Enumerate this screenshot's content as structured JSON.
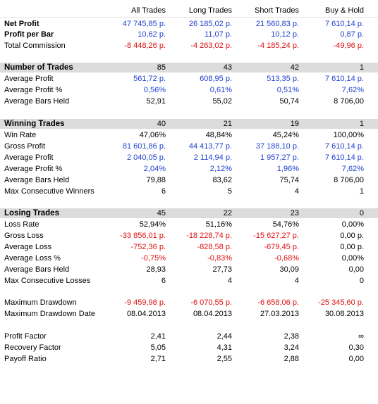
{
  "columns": [
    "All Trades",
    "Long Trades",
    "Short Trades",
    "Buy & Hold"
  ],
  "rows": [
    {
      "label": "Net Profit",
      "style": "bold",
      "values": [
        {
          "v": "47 745,85 p.",
          "c": "blue"
        },
        {
          "v": "26 185,02 p.",
          "c": "blue"
        },
        {
          "v": "21 560,83 p.",
          "c": "blue"
        },
        {
          "v": "7 610,14 p.",
          "c": "blue"
        }
      ]
    },
    {
      "label": "Profit per Bar",
      "style": "bold",
      "values": [
        {
          "v": "10,62 p.",
          "c": "blue"
        },
        {
          "v": "11,07 p.",
          "c": "blue"
        },
        {
          "v": "10,12 p.",
          "c": "blue"
        },
        {
          "v": "0,87 p.",
          "c": "blue"
        }
      ]
    },
    {
      "label": "Total Commission",
      "style": "normal",
      "values": [
        {
          "v": "-8 448,26 p.",
          "c": "red"
        },
        {
          "v": "-4 263,02 p.",
          "c": "red"
        },
        {
          "v": "-4 185,24 p.",
          "c": "red"
        },
        {
          "v": "-49,96 p.",
          "c": "red"
        }
      ]
    },
    {
      "label": "Number of Trades",
      "style": "section",
      "values": [
        {
          "v": "85",
          "c": "blk"
        },
        {
          "v": "43",
          "c": "blk"
        },
        {
          "v": "42",
          "c": "blk"
        },
        {
          "v": "1",
          "c": "blk"
        }
      ]
    },
    {
      "label": "Average Profit",
      "style": "normal",
      "values": [
        {
          "v": "561,72 p.",
          "c": "blue"
        },
        {
          "v": "608,95 p.",
          "c": "blue"
        },
        {
          "v": "513,35 p.",
          "c": "blue"
        },
        {
          "v": "7 610,14 p.",
          "c": "blue"
        }
      ]
    },
    {
      "label": "Average Profit %",
      "style": "normal",
      "values": [
        {
          "v": "0,56%",
          "c": "blue"
        },
        {
          "v": "0,61%",
          "c": "blue"
        },
        {
          "v": "0,51%",
          "c": "blue"
        },
        {
          "v": "7,62%",
          "c": "blue"
        }
      ]
    },
    {
      "label": "Average Bars Held",
      "style": "normal",
      "values": [
        {
          "v": "52,91",
          "c": "blk"
        },
        {
          "v": "55,02",
          "c": "blk"
        },
        {
          "v": "50,74",
          "c": "blk"
        },
        {
          "v": "8 706,00",
          "c": "blk"
        }
      ]
    },
    {
      "label": "Winning Trades",
      "style": "section",
      "values": [
        {
          "v": "40",
          "c": "blk"
        },
        {
          "v": "21",
          "c": "blk"
        },
        {
          "v": "19",
          "c": "blk"
        },
        {
          "v": "1",
          "c": "blk"
        }
      ]
    },
    {
      "label": "Win Rate",
      "style": "normal",
      "values": [
        {
          "v": "47,06%",
          "c": "blk"
        },
        {
          "v": "48,84%",
          "c": "blk"
        },
        {
          "v": "45,24%",
          "c": "blk"
        },
        {
          "v": "100,00%",
          "c": "blk"
        }
      ]
    },
    {
      "label": "Gross Profit",
      "style": "normal",
      "values": [
        {
          "v": "81 601,86 p.",
          "c": "blue"
        },
        {
          "v": "44 413,77 p.",
          "c": "blue"
        },
        {
          "v": "37 188,10 p.",
          "c": "blue"
        },
        {
          "v": "7 610,14 p.",
          "c": "blue"
        }
      ]
    },
    {
      "label": "Average Profit",
      "style": "normal",
      "values": [
        {
          "v": "2 040,05 p.",
          "c": "blue"
        },
        {
          "v": "2 114,94 p.",
          "c": "blue"
        },
        {
          "v": "1 957,27 p.",
          "c": "blue"
        },
        {
          "v": "7 610,14 p.",
          "c": "blue"
        }
      ]
    },
    {
      "label": "Average Profit %",
      "style": "normal",
      "values": [
        {
          "v": "2,04%",
          "c": "blue"
        },
        {
          "v": "2,12%",
          "c": "blue"
        },
        {
          "v": "1,96%",
          "c": "blue"
        },
        {
          "v": "7,62%",
          "c": "blue"
        }
      ]
    },
    {
      "label": "Average Bars Held",
      "style": "normal",
      "values": [
        {
          "v": "79,88",
          "c": "blk"
        },
        {
          "v": "83,62",
          "c": "blk"
        },
        {
          "v": "75,74",
          "c": "blk"
        },
        {
          "v": "8 706,00",
          "c": "blk"
        }
      ]
    },
    {
      "label": "Max Consecutive Winners",
      "style": "normal",
      "values": [
        {
          "v": "6",
          "c": "blk"
        },
        {
          "v": "5",
          "c": "blk"
        },
        {
          "v": "4",
          "c": "blk"
        },
        {
          "v": "1",
          "c": "blk"
        }
      ]
    },
    {
      "label": "Losing Trades",
      "style": "section",
      "values": [
        {
          "v": "45",
          "c": "blk"
        },
        {
          "v": "22",
          "c": "blk"
        },
        {
          "v": "23",
          "c": "blk"
        },
        {
          "v": "0",
          "c": "blk"
        }
      ]
    },
    {
      "label": "Loss Rate",
      "style": "normal",
      "values": [
        {
          "v": "52,94%",
          "c": "blk"
        },
        {
          "v": "51,16%",
          "c": "blk"
        },
        {
          "v": "54,76%",
          "c": "blk"
        },
        {
          "v": "0,00%",
          "c": "blk"
        }
      ]
    },
    {
      "label": "Gross Loss",
      "style": "normal",
      "values": [
        {
          "v": "-33 856,01 p.",
          "c": "red"
        },
        {
          "v": "-18 228,74 p.",
          "c": "red"
        },
        {
          "v": "-15 627,27 p.",
          "c": "red"
        },
        {
          "v": "0,00 p.",
          "c": "blk"
        }
      ]
    },
    {
      "label": "Average Loss",
      "style": "normal",
      "values": [
        {
          "v": "-752,36 p.",
          "c": "red"
        },
        {
          "v": "-828,58 p.",
          "c": "red"
        },
        {
          "v": "-679,45 p.",
          "c": "red"
        },
        {
          "v": "0,00 p.",
          "c": "blk"
        }
      ]
    },
    {
      "label": "Average Loss %",
      "style": "normal",
      "values": [
        {
          "v": "-0,75%",
          "c": "red"
        },
        {
          "v": "-0,83%",
          "c": "red"
        },
        {
          "v": "-0,68%",
          "c": "red"
        },
        {
          "v": "0,00%",
          "c": "blk"
        }
      ]
    },
    {
      "label": "Average Bars Held",
      "style": "normal",
      "values": [
        {
          "v": "28,93",
          "c": "blk"
        },
        {
          "v": "27,73",
          "c": "blk"
        },
        {
          "v": "30,09",
          "c": "blk"
        },
        {
          "v": "0,00",
          "c": "blk"
        }
      ]
    },
    {
      "label": "Max Consecutive Losses",
      "style": "normal",
      "values": [
        {
          "v": "6",
          "c": "blk"
        },
        {
          "v": "4",
          "c": "blk"
        },
        {
          "v": "4",
          "c": "blk"
        },
        {
          "v": "0",
          "c": "blk"
        }
      ]
    },
    {
      "label": "Maximum Drawdown",
      "style": "normal",
      "values": [
        {
          "v": "-9 459,98 p.",
          "c": "red"
        },
        {
          "v": "-6 070,55 p.",
          "c": "red"
        },
        {
          "v": "-6 658,06 p.",
          "c": "red"
        },
        {
          "v": "-25 345,60 p.",
          "c": "red"
        }
      ]
    },
    {
      "label": "Maximum Drawdown Date",
      "style": "normal",
      "values": [
        {
          "v": "08.04.2013",
          "c": "blk"
        },
        {
          "v": "08.04.2013",
          "c": "blk"
        },
        {
          "v": "27.03.2013",
          "c": "blk"
        },
        {
          "v": "30.08.2013",
          "c": "blk"
        }
      ]
    },
    {
      "label": "Profit Factor",
      "style": "normal",
      "values": [
        {
          "v": "2,41",
          "c": "blk"
        },
        {
          "v": "2,44",
          "c": "blk"
        },
        {
          "v": "2,38",
          "c": "blk"
        },
        {
          "v": "∞",
          "c": "blk"
        }
      ]
    },
    {
      "label": "Recovery Factor",
      "style": "normal",
      "values": [
        {
          "v": "5,05",
          "c": "blk"
        },
        {
          "v": "4,31",
          "c": "blk"
        },
        {
          "v": "3,24",
          "c": "blk"
        },
        {
          "v": "0,30",
          "c": "blk"
        }
      ]
    },
    {
      "label": "Payoff Ratio",
      "style": "normal",
      "values": [
        {
          "v": "2,71",
          "c": "blk"
        },
        {
          "v": "2,55",
          "c": "blk"
        },
        {
          "v": "2,88",
          "c": "blk"
        },
        {
          "v": "0,00",
          "c": "blk"
        }
      ]
    }
  ]
}
